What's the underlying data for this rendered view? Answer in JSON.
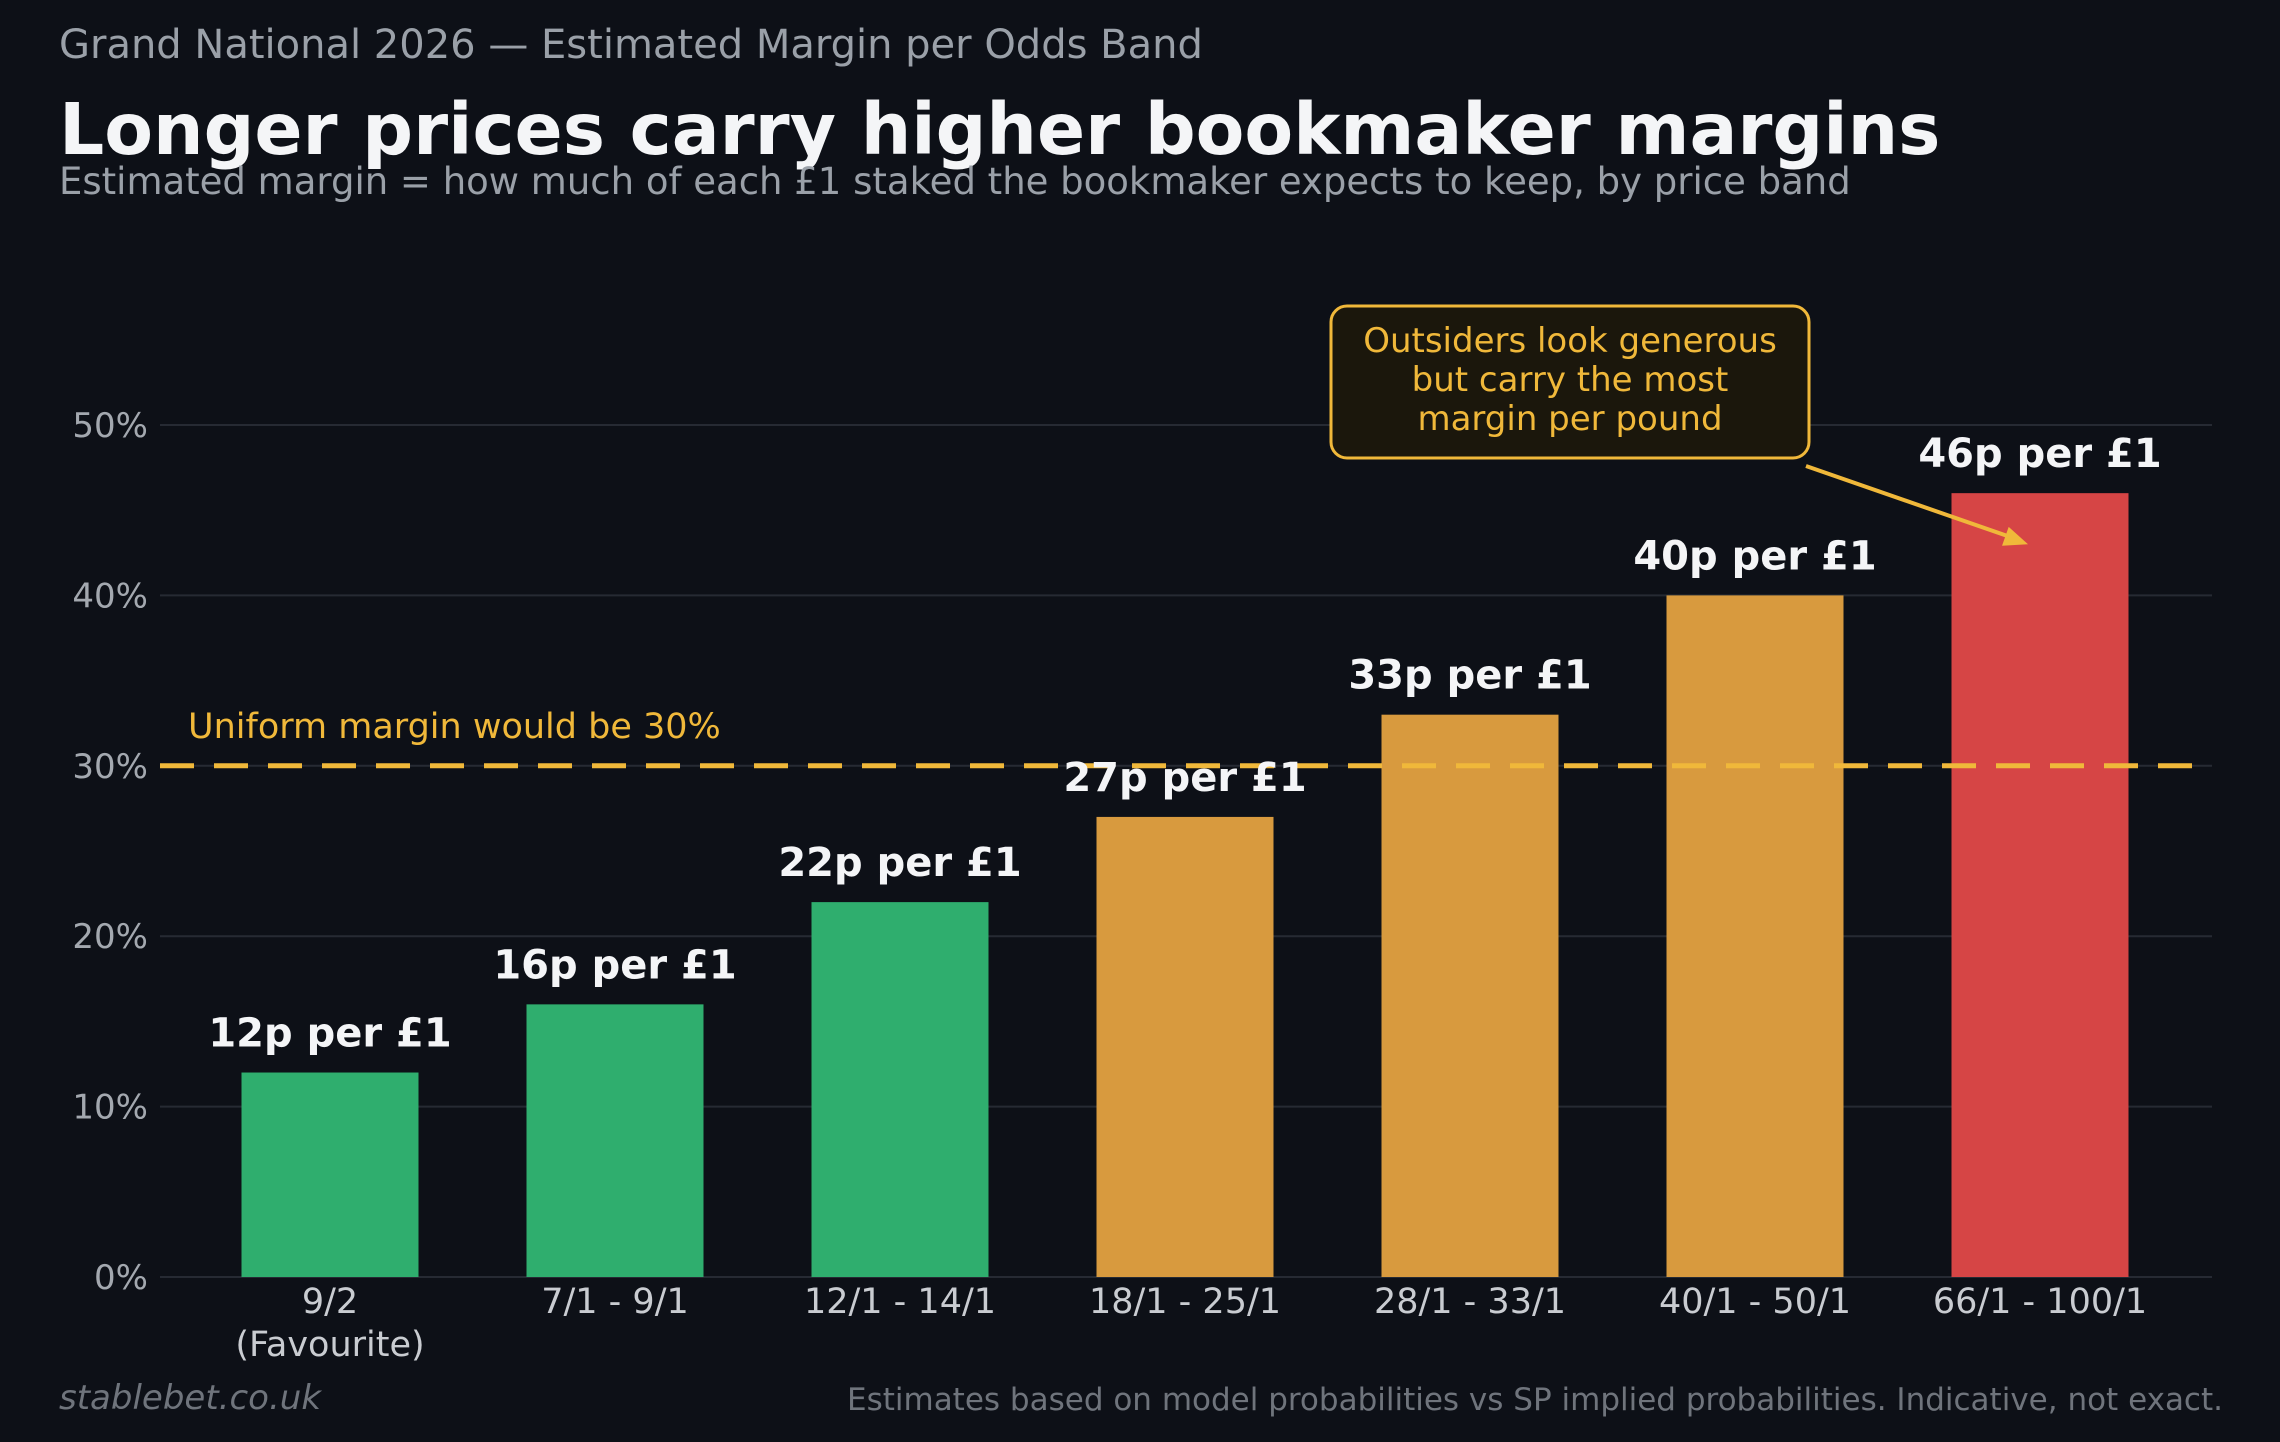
{
  "header": {
    "kicker": "Grand National 2026 — Estimated Margin per Odds Band",
    "title": "Longer prices carry higher bookmaker margins",
    "subtitle": "Estimated margin = how much of each £1 staked the bookmaker expects to keep, by price band"
  },
  "footer": {
    "brand": "stablebet.co.uk",
    "note": "Estimates based on model probabilities vs SP implied probabilities. Indicative, not exact."
  },
  "chart_data": {
    "type": "bar",
    "categories": [
      "9/2\n(Favourite)",
      "7/1 - 9/1",
      "12/1 - 14/1",
      "18/1 - 25/1",
      "28/1 - 33/1",
      "40/1 - 50/1",
      "66/1 - 100/1"
    ],
    "values": [
      12,
      16,
      22,
      27,
      33,
      40,
      46
    ],
    "value_labels": [
      "12p per £1",
      "16p per £1",
      "22p per £1",
      "27p per £1",
      "33p per £1",
      "40p per £1",
      "46p per £1"
    ],
    "bar_colors": [
      "#2fae6e",
      "#2fae6e",
      "#2fae6e",
      "#d89a3e",
      "#d89a3e",
      "#d89a3e",
      "#d64545"
    ],
    "yticks": [
      0,
      10,
      20,
      30,
      40,
      50
    ],
    "ytick_labels": [
      "0%",
      "10%",
      "20%",
      "30%",
      "40%",
      "50%"
    ],
    "ylim": [
      0,
      50
    ],
    "xlabel": "",
    "ylabel": "",
    "grid": true,
    "reference_line": {
      "value": 30,
      "label": "Uniform margin would be 30%",
      "color": "#f0b83a"
    },
    "annotation": {
      "lines": [
        "Outsiders look generous",
        "but carry the most",
        "margin per pound"
      ],
      "target_category": "66/1 - 100/1",
      "target_value": 43,
      "color": "#f0b83a"
    }
  }
}
